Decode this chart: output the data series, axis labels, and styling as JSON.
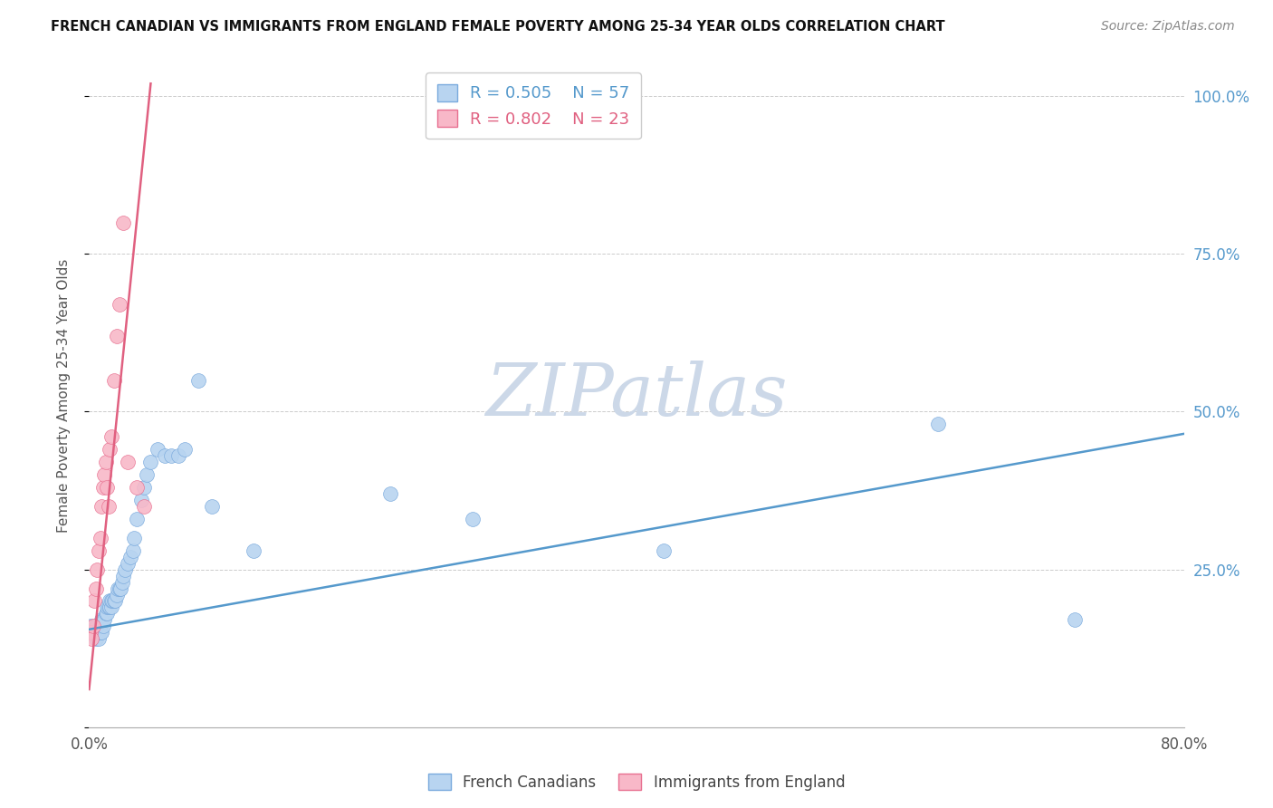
{
  "title": "FRENCH CANADIAN VS IMMIGRANTS FROM ENGLAND FEMALE POVERTY AMONG 25-34 YEAR OLDS CORRELATION CHART",
  "source": "Source: ZipAtlas.com",
  "ylabel": "Female Poverty Among 25-34 Year Olds",
  "xlim": [
    0.0,
    0.8
  ],
  "ylim": [
    0.0,
    1.05
  ],
  "grid_color": "#cccccc",
  "background_color": "#ffffff",
  "series": [
    {
      "name": "French Canadians",
      "R": 0.505,
      "N": 57,
      "color": "#b8d4f0",
      "edge_color": "#7aaadd",
      "line_color": "#5599cc",
      "x": [
        0.001,
        0.002,
        0.003,
        0.004,
        0.005,
        0.005,
        0.006,
        0.006,
        0.007,
        0.007,
        0.008,
        0.008,
        0.009,
        0.009,
        0.01,
        0.01,
        0.011,
        0.012,
        0.013,
        0.013,
        0.014,
        0.015,
        0.015,
        0.016,
        0.016,
        0.017,
        0.018,
        0.019,
        0.02,
        0.021,
        0.022,
        0.023,
        0.024,
        0.025,
        0.026,
        0.028,
        0.03,
        0.032,
        0.033,
        0.035,
        0.038,
        0.04,
        0.042,
        0.045,
        0.05,
        0.055,
        0.06,
        0.065,
        0.07,
        0.08,
        0.09,
        0.12,
        0.22,
        0.28,
        0.42,
        0.62,
        0.72
      ],
      "y": [
        0.16,
        0.15,
        0.15,
        0.15,
        0.14,
        0.16,
        0.15,
        0.16,
        0.14,
        0.15,
        0.15,
        0.16,
        0.15,
        0.17,
        0.16,
        0.17,
        0.17,
        0.18,
        0.18,
        0.19,
        0.19,
        0.19,
        0.2,
        0.19,
        0.2,
        0.2,
        0.2,
        0.2,
        0.21,
        0.22,
        0.22,
        0.22,
        0.23,
        0.24,
        0.25,
        0.26,
        0.27,
        0.28,
        0.3,
        0.33,
        0.36,
        0.38,
        0.4,
        0.42,
        0.44,
        0.43,
        0.43,
        0.43,
        0.44,
        0.55,
        0.35,
        0.28,
        0.37,
        0.33,
        0.28,
        0.48,
        0.17
      ],
      "trend_x": [
        0.0,
        0.8
      ],
      "trend_y": [
        0.155,
        0.465
      ]
    },
    {
      "name": "Immigrants from England",
      "R": 0.802,
      "N": 23,
      "color": "#f8b8c8",
      "edge_color": "#e87090",
      "line_color": "#e06080",
      "x": [
        0.001,
        0.002,
        0.003,
        0.004,
        0.005,
        0.006,
        0.007,
        0.008,
        0.009,
        0.01,
        0.011,
        0.012,
        0.013,
        0.014,
        0.015,
        0.016,
        0.018,
        0.02,
        0.022,
        0.025,
        0.028,
        0.035,
        0.04
      ],
      "y": [
        0.15,
        0.14,
        0.16,
        0.2,
        0.22,
        0.25,
        0.28,
        0.3,
        0.35,
        0.38,
        0.4,
        0.42,
        0.38,
        0.35,
        0.44,
        0.46,
        0.55,
        0.62,
        0.67,
        0.8,
        0.42,
        0.38,
        0.35
      ],
      "trend_x": [
        0.0,
        0.045
      ],
      "trend_y": [
        0.06,
        1.02
      ]
    }
  ],
  "watermark": "ZIPatlas",
  "watermark_color": "#ccd8e8"
}
